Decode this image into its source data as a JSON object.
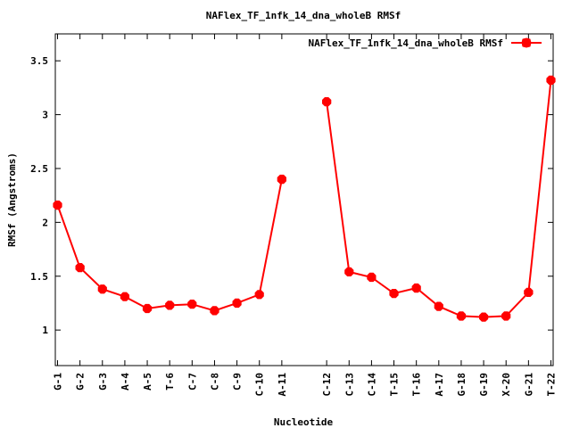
{
  "chart_data": {
    "type": "line",
    "title": "NAFlex_TF_1nfk_14_dna_wholeB RMSf",
    "xlabel": "Nucleotide",
    "ylabel": "RMSf (Angstroms)",
    "ylim": [
      0.67,
      3.75
    ],
    "yticks": [
      {
        "value": 1,
        "label": "1"
      },
      {
        "value": 1.5,
        "label": "1.5"
      },
      {
        "value": 2,
        "label": "2"
      },
      {
        "value": 2.5,
        "label": "2.5"
      },
      {
        "value": 3,
        "label": "3"
      },
      {
        "value": 3.5,
        "label": "3.5"
      }
    ],
    "xlim": [
      0.9,
      23.1
    ],
    "grid": false,
    "legend_position": "top-right",
    "color": "#ff0000",
    "categories": [
      {
        "x": 1,
        "label": "G-1"
      },
      {
        "x": 2,
        "label": "G-2"
      },
      {
        "x": 3,
        "label": "G-3"
      },
      {
        "x": 4,
        "label": "A-4"
      },
      {
        "x": 5,
        "label": "A-5"
      },
      {
        "x": 6,
        "label": "T-6"
      },
      {
        "x": 7,
        "label": "C-7"
      },
      {
        "x": 8,
        "label": "C-8"
      },
      {
        "x": 9,
        "label": "C-9"
      },
      {
        "x": 10,
        "label": "C-10"
      },
      {
        "x": 11,
        "label": "A-11"
      },
      {
        "x": 13,
        "label": "C-12"
      },
      {
        "x": 14,
        "label": "C-13"
      },
      {
        "x": 15,
        "label": "C-14"
      },
      {
        "x": 16,
        "label": "T-15"
      },
      {
        "x": 17,
        "label": "T-16"
      },
      {
        "x": 18,
        "label": "A-17"
      },
      {
        "x": 19,
        "label": "G-18"
      },
      {
        "x": 20,
        "label": "G-19"
      },
      {
        "x": 21,
        "label": "X-20"
      },
      {
        "x": 22,
        "label": "G-21"
      },
      {
        "x": 23,
        "label": "T-22"
      }
    ],
    "series": [
      {
        "name": "NAFlex_TF_1nfk_14_dna_wholeB RMSf",
        "segments": [
          [
            {
              "x": 1,
              "y": 2.16
            },
            {
              "x": 2,
              "y": 1.58
            },
            {
              "x": 3,
              "y": 1.38
            },
            {
              "x": 4,
              "y": 1.31
            },
            {
              "x": 5,
              "y": 1.2
            },
            {
              "x": 6,
              "y": 1.23
            },
            {
              "x": 7,
              "y": 1.24
            },
            {
              "x": 8,
              "y": 1.18
            },
            {
              "x": 9,
              "y": 1.25
            },
            {
              "x": 10,
              "y": 1.33
            },
            {
              "x": 11,
              "y": 2.4
            }
          ],
          [
            {
              "x": 13,
              "y": 3.12
            },
            {
              "x": 14,
              "y": 1.54
            },
            {
              "x": 15,
              "y": 1.49
            },
            {
              "x": 16,
              "y": 1.34
            },
            {
              "x": 17,
              "y": 1.39
            },
            {
              "x": 18,
              "y": 1.22
            },
            {
              "x": 19,
              "y": 1.13
            },
            {
              "x": 20,
              "y": 1.12
            },
            {
              "x": 21,
              "y": 1.13
            },
            {
              "x": 22,
              "y": 1.35
            },
            {
              "x": 23,
              "y": 3.32
            }
          ]
        ]
      }
    ]
  }
}
